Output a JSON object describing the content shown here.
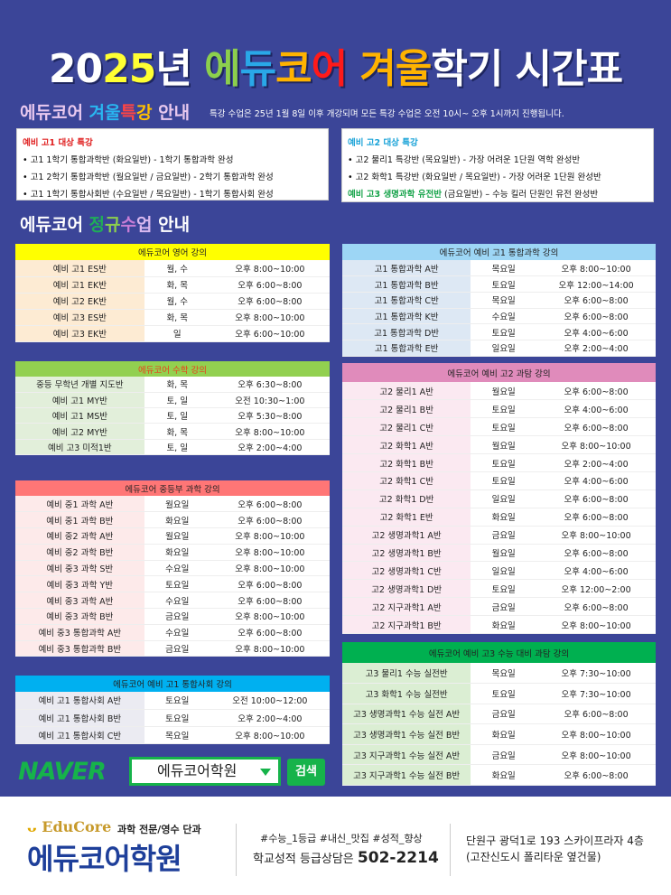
{
  "title": {
    "parts": [
      {
        "t": "20",
        "c": "#ffffff"
      },
      {
        "t": "25",
        "c": "#ffff33"
      },
      {
        "t": "년 ",
        "c": "#ffffff"
      },
      {
        "t": "에",
        "c": "#8ccf4d"
      },
      {
        "t": "듀",
        "c": "#29a8e8"
      },
      {
        "t": "코",
        "c": "#ffb300"
      },
      {
        "t": "어",
        "c": "#ff1a1a"
      },
      {
        "t": "  겨울",
        "c": "#ffb300"
      },
      {
        "t": "학기 시간표",
        "c": "#ffffff"
      }
    ]
  },
  "special": {
    "heading": [
      {
        "t": "에듀코어 ",
        "c": "#e9c9ef"
      },
      {
        "t": "겨울",
        "c": "#29b6f0"
      },
      {
        "t": "특",
        "c": "#ff4444"
      },
      {
        "t": "강",
        "c": "#ffc000"
      },
      {
        "t": " 안내",
        "c": "#e9c9ef"
      }
    ],
    "notice": "특강 수업은 25년 1월 8일 이후 개강되며 모든 특강 수업은 오전 10시~ 오후 1시까지 진행됩니다.",
    "left": {
      "title": "예비 고1 대상 특강",
      "title_color": "#e02020",
      "items": [
        "• 고1 1학기 통합과학반 (화요일반) - 1학기 통합과학 완성",
        "• 고1 2학기 통합과학반 (월요일반 / 금요일반) - 2학기 통합과학 완성",
        "• 고1 1학기 통합사회반 (수요일반 / 목요일반) - 1학기 통합사회 완성"
      ]
    },
    "right": {
      "title": "예비 고2 대상 특강",
      "title_color": "#1aa3d8",
      "items": [
        "• 고2 물리1 특강반 (목요일반) - 가장 어려운 1단원 역학 완성반",
        "• 고2 화학1 특강반 (화요일반 / 목요일반) - 가장 어려운 1단원 완성반"
      ],
      "extra_highlight": "예비 고3 생명과학 유전반",
      "extra_rest": " (금요일반) – 수능 킬러 단원인 유전 완성반",
      "extra_color": "#16a34a"
    }
  },
  "regular": {
    "heading": [
      {
        "t": "에듀코어 ",
        "c": "#ffffff"
      },
      {
        "t": "정",
        "c": "#1fae57"
      },
      {
        "t": "규",
        "c": "#8ccf4d"
      },
      {
        "t": "수",
        "c": "#c77dd6"
      },
      {
        "t": "업",
        "c": "#d9b8f0"
      },
      {
        "t": " 안내",
        "c": "#ffffff"
      }
    ]
  },
  "tables": [
    {
      "id": "english",
      "title": "에듀코어 영어 강의",
      "header_color": "#ffff00",
      "title_color": "#222222",
      "shade": "#fdebd3",
      "rows": [
        [
          "예비 고1 ES반",
          "월, 수",
          "오후 8:00~10:00"
        ],
        [
          "예비 고1 EK반",
          "화, 목",
          "오후 6:00~8:00"
        ],
        [
          "예비 고2 EK반",
          "월, 수",
          "오후 6:00~8:00"
        ],
        [
          "예비 고3 ES반",
          "화, 목",
          "오후 8:00~10:00"
        ],
        [
          "예비 고3 EK반",
          "일",
          "오후 6:00~10:00"
        ]
      ]
    },
    {
      "id": "math",
      "title": "에듀코어 수학 강의",
      "header_color": "#92d050",
      "title_color": "#e8401c",
      "shade": "#e2efda",
      "rows": [
        [
          "중등 무학년 개별 지도반",
          "화, 목",
          "오후 6:30~8:00"
        ],
        [
          "예비 고1 MY반",
          "토, 일",
          "오전 10:30~1:00"
        ],
        [
          "예비 고1 MS반",
          "토, 일",
          "오후 5:30~8:00"
        ],
        [
          "예비 고2 MY반",
          "화, 목",
          "오후 8:00~10:00"
        ],
        [
          "예비 고3 미적1반",
          "토, 일",
          "오후 2:00~4:00"
        ]
      ]
    },
    {
      "id": "middle-science",
      "title": "에듀코어 중등부 과학 강의",
      "header_color": "#ff7676",
      "title_color": "#222222",
      "shade": "#fdeaea",
      "rows": [
        [
          "예비 중1 과학 A반",
          "월요일",
          "오후 6:00~8:00"
        ],
        [
          "예비 중1 과학 B반",
          "화요일",
          "오후 6:00~8:00"
        ],
        [
          "예비 중2 과학 A반",
          "월요일",
          "오후 8:00~10:00"
        ],
        [
          "예비 중2 과학 B반",
          "화요일",
          "오후 8:00~10:00"
        ],
        [
          "예비 중3 과학 S반",
          "수요일",
          "오후 8:00~10:00"
        ],
        [
          "예비 중3 과학 Y반",
          "토요일",
          "오후 6:00~8:00"
        ],
        [
          "예비 중3 과학 A반",
          "수요일",
          "오후 6:00~8:00"
        ],
        [
          "예비 중3 과학 B반",
          "금요일",
          "오후 8:00~10:00"
        ],
        [
          "예비 중3 통합과학 A반",
          "수요일",
          "오후 6:00~8:00"
        ],
        [
          "예비 중3 통합과학 B반",
          "금요일",
          "오후 8:00~10:00"
        ]
      ]
    },
    {
      "id": "social",
      "title": "에듀코어 예비 고1 통합사회 강의",
      "header_color": "#00b0f0",
      "title_color": "#222222",
      "shade": "#ebebf2",
      "rows": [
        [
          "예비 고1 통합사회 A반",
          "토요일",
          "오전 10:00~12:00"
        ],
        [
          "예비 고1 통합사회 B반",
          "토요일",
          "오후 2:00~4:00"
        ],
        [
          "예비 고1 통합사회 C반",
          "목요일",
          "오후 8:00~10:00"
        ]
      ]
    },
    {
      "id": "g1-science",
      "title": "에듀코어 예비 고1 통합과학 강의",
      "header_color": "#9dd6f5",
      "title_color": "#222222",
      "shade": "#dde8f4",
      "rows": [
        [
          "고1 통합과학 A반",
          "목요일",
          "오후 8:00~10:00"
        ],
        [
          "고1 통합과학 B반",
          "토요일",
          "오후 12:00~14:00"
        ],
        [
          "고1 통합과학 C반",
          "목요일",
          "오후 6:00~8:00"
        ],
        [
          "고1 통합과학 K반",
          "수요일",
          "오후 6:00~8:00"
        ],
        [
          "고1 통합과학 D반",
          "토요일",
          "오후 4:00~6:00"
        ],
        [
          "고1 통합과학 E반",
          "일요일",
          "오후 2:00~4:00"
        ]
      ]
    },
    {
      "id": "g2-science",
      "title": "에듀코어 예비 고2 과탐 강의",
      "header_color": "#e08bbb",
      "title_color": "#222222",
      "shade": "#fbe9f1",
      "rows": [
        [
          "고2 물리1 A반",
          "월요일",
          "오후 6:00~8:00"
        ],
        [
          "고2 물리1 B반",
          "토요일",
          "오후 4:00~6:00"
        ],
        [
          "고2 물리1 C반",
          "토요일",
          "오후 6:00~8:00"
        ],
        [
          "고2 화학1 A반",
          "월요일",
          "오후 8:00~10:00"
        ],
        [
          "고2 화학1 B반",
          "토요일",
          "오후 2:00~4:00"
        ],
        [
          "고2 화학1 C반",
          "토요일",
          "오후 4:00~6:00"
        ],
        [
          "고2 화학1 D반",
          "일요일",
          "오후 6:00~8:00"
        ],
        [
          "고2 화학1 E반",
          "화요일",
          "오후 6:00~8:00"
        ],
        [
          "고2 생명과학1 A반",
          "금요일",
          "오후 8:00~10:00"
        ],
        [
          "고2 생명과학1 B반",
          "월요일",
          "오후 6:00~8:00"
        ],
        [
          "고2 생명과학1 C반",
          "일요일",
          "오후 4:00~6:00"
        ],
        [
          "고2 생명과학1 D반",
          "토요일",
          "오후 12:00~2:00"
        ],
        [
          "고2 지구과학1 A반",
          "금요일",
          "오후 6:00~8:00"
        ],
        [
          "고2 지구과학1 B반",
          "화요일",
          "오후 8:00~10:00"
        ]
      ]
    },
    {
      "id": "g3-science",
      "title": "에듀코어 예비 고3 수능 대비 과탐 강의",
      "header_color": "#00b050",
      "title_color": "#222222",
      "shade": "#dbeed3",
      "rows": [
        [
          "고3 물리1 수능 실전반",
          "목요일",
          "오후 7:30~10:00"
        ],
        [
          "고3 화학1 수능 실전반",
          "토요일",
          "오후 7:30~10:00"
        ],
        [
          "고3 생명과학1 수능 실전 A반",
          "금요일",
          "오후 6:00~8:00"
        ],
        [
          "고3 생명과학1 수능 실전 B반",
          "화요일",
          "오후 8:00~10:00"
        ],
        [
          "고3 지구과학1 수능 실전 A반",
          "금요일",
          "오후 8:00~10:00"
        ],
        [
          "고3 지구과학1 수능 실전 B반",
          "화요일",
          "오후 6:00~8:00"
        ]
      ]
    }
  ],
  "naver": {
    "logo": "NAVER",
    "query": "에듀코어학원",
    "search_label": "검색",
    "color": "#16b34a"
  },
  "footer": {
    "brand_en": "EduCore",
    "tagline": "과학 전문/영수 단과",
    "brand_ko": "에듀코어학원",
    "hashtags": "#수능_1등급 #내신_맛집 #성적_향상",
    "consult_label": "학교성적 등급상담은",
    "phone": "502-2214",
    "address1": "단원구 광덕1로 193 스카이프라자 4층",
    "address2": "(고잔신도시 폴리타운 옆건물)"
  }
}
